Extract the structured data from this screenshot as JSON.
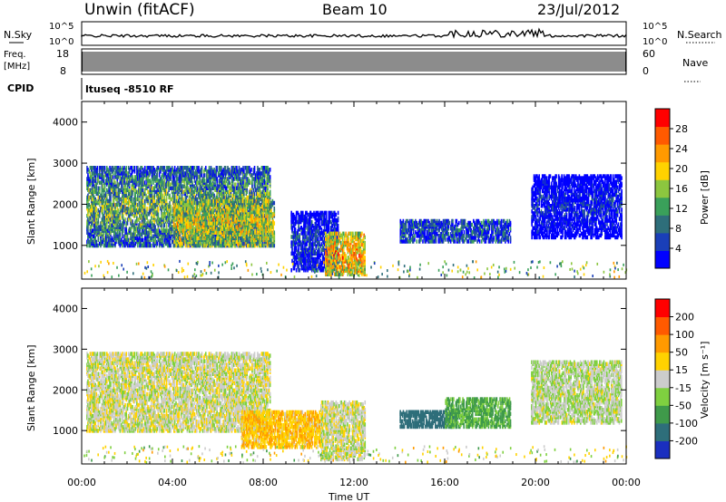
{
  "header": {
    "site": "Unwin (fitACF)",
    "beam": "Beam 10",
    "date": "23/Jul/2012"
  },
  "strip_panels": {
    "nsky_label": "N.Sky",
    "nsearch_label": "N.Search",
    "nsky_ticks": [
      "10^5",
      "10^0"
    ],
    "nsearch_ticks": [
      "10^5",
      "10^0"
    ],
    "freq_label_line1": "Freq.",
    "freq_label_line2": "[MHz]",
    "freq_ticks": [
      "18",
      "8"
    ],
    "nave_label": "Nave",
    "nave_ticks": [
      "60",
      "0"
    ],
    "cpid_label": "CPID",
    "cpid_value": "ltuseq -8510 RF"
  },
  "chart_data": [
    {
      "type": "heatmap",
      "name": "power",
      "ylabel": "Slant Range [km]",
      "xlabel": "",
      "x_ticks": [
        "00:00",
        "04:00",
        "08:00",
        "12:00",
        "16:00",
        "20:00",
        "00:00"
      ],
      "y_ticks": [
        "1000",
        "2000",
        "3000",
        "4000"
      ],
      "xlim_hours": [
        0,
        24
      ],
      "ylim_km": [
        180,
        4500
      ],
      "colorbar_label": "Power [dB]",
      "colorbar_ticks": [
        "28",
        "24",
        "20",
        "16",
        "12",
        "8",
        "4"
      ],
      "colorbar_colors": [
        "#0000ff",
        "#1a3fb8",
        "#2e6e7a",
        "#3aa05a",
        "#8cc63f",
        "#ffd200",
        "#ff9a00",
        "#ff5a00",
        "#ff0000"
      ],
      "blobs": [
        {
          "t0": 0.2,
          "t1": 8.3,
          "r0": 1000,
          "r1": 2900,
          "peak_dB": 22
        },
        {
          "t0": 4.0,
          "t1": 8.5,
          "r0": 1000,
          "r1": 2100,
          "peak_dB": 26
        },
        {
          "t0": 9.2,
          "t1": 11.3,
          "r0": 400,
          "r1": 1800,
          "peak_dB": 12
        },
        {
          "t0": 10.7,
          "t1": 12.5,
          "r0": 300,
          "r1": 1300,
          "peak_dB": 30
        },
        {
          "t0": 14.0,
          "t1": 18.9,
          "r0": 1100,
          "r1": 1600,
          "peak_dB": 14
        },
        {
          "t0": 19.8,
          "t1": 23.8,
          "r0": 1200,
          "r1": 2700,
          "peak_dB": 10
        }
      ]
    },
    {
      "type": "heatmap",
      "name": "velocity",
      "ylabel": "Slant Range [km]",
      "xlabel": "Time UT",
      "x_ticks": [
        "00:00",
        "04:00",
        "08:00",
        "12:00",
        "16:00",
        "20:00",
        "00:00"
      ],
      "y_ticks": [
        "1000",
        "2000",
        "3000",
        "4000"
      ],
      "xlim_hours": [
        0,
        24
      ],
      "ylim_km": [
        180,
        4500
      ],
      "colorbar_label": "Velocity [m s⁻¹]",
      "colorbar_ticks": [
        "200",
        "100",
        "50",
        "15",
        "-15",
        "-50",
        "-100",
        "-200"
      ],
      "colorbar_colors": [
        "#1a2fbf",
        "#2e6e7a",
        "#3f9a4a",
        "#7fd040",
        "#cccccc",
        "#ffd200",
        "#ff9a00",
        "#ff5a00",
        "#ff0000"
      ],
      "blobs": [
        {
          "t0": 0.2,
          "t1": 8.3,
          "r0": 1000,
          "r1": 2900,
          "vel": 0
        },
        {
          "t0": 7.0,
          "t1": 10.5,
          "r0": 600,
          "r1": 1500,
          "vel": -40
        },
        {
          "t0": 10.5,
          "t1": 12.5,
          "r0": 300,
          "r1": 1700,
          "vel": 0
        },
        {
          "t0": 14.0,
          "t1": 16.5,
          "r0": 1100,
          "r1": 1500,
          "vel": 150
        },
        {
          "t0": 16.0,
          "t1": 18.9,
          "r0": 1100,
          "r1": 1800,
          "vel": 60
        },
        {
          "t0": 19.8,
          "t1": 23.8,
          "r0": 1200,
          "r1": 2700,
          "vel": 10
        }
      ]
    }
  ]
}
